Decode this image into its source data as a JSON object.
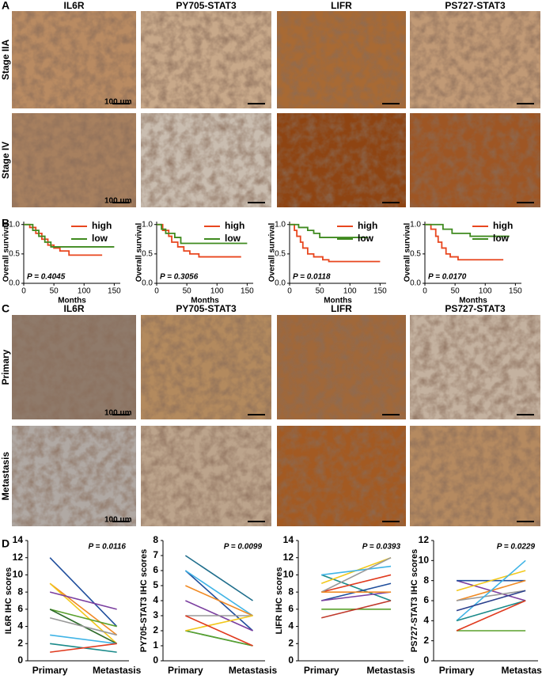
{
  "panel_labels": [
    "A",
    "B",
    "C",
    "D"
  ],
  "panel_a": {
    "columns": [
      "IL6R",
      "PY705-STAT3",
      "LIFR",
      "PS727-STAT3"
    ],
    "rows": [
      "Stage IIA",
      "Stage IV"
    ],
    "scale_labels": [
      "100 um",
      "100 um"
    ]
  },
  "panel_c": {
    "columns": [
      "IL6R",
      "PY705-STAT3",
      "LIFR",
      "PS727-STAT3"
    ],
    "rows": [
      "Primary",
      "Metastasis"
    ],
    "scale_labels": [
      "100 um",
      "100 um"
    ]
  },
  "chart_data": [
    {
      "type": "step",
      "ylabel": "Overall survival",
      "xlabel": "Months",
      "annotation": "P = 0.4045",
      "legend": "upper right",
      "xlim": [
        0,
        160
      ],
      "ylim": [
        0,
        1.05
      ],
      "xticks": [
        0,
        50,
        100,
        150
      ],
      "yticks": [
        {
          "value": 0,
          "label": "0.0"
        },
        {
          "value": 0.5,
          "label": "0.5"
        },
        {
          "value": 1,
          "label": "1.0"
        }
      ],
      "series": [
        {
          "name": "high",
          "color": "#e8461e",
          "x": [
            0,
            10,
            10,
            20,
            20,
            30,
            30,
            40,
            40,
            50,
            50,
            60,
            60,
            75,
            75,
            130
          ],
          "values": [
            1,
            1,
            0.95,
            0.95,
            0.85,
            0.85,
            0.75,
            0.75,
            0.65,
            0.65,
            0.6,
            0.6,
            0.55,
            0.55,
            0.48,
            0.48
          ]
        },
        {
          "name": "low",
          "color": "#3f8a1f",
          "x": [
            0,
            15,
            15,
            25,
            25,
            35,
            35,
            45,
            45,
            150
          ],
          "values": [
            1,
            1,
            0.9,
            0.9,
            0.8,
            0.8,
            0.7,
            0.7,
            0.62,
            0.62
          ]
        }
      ]
    },
    {
      "type": "step",
      "ylabel": "Overall survival",
      "xlabel": "Months",
      "annotation": "P = 0.3056",
      "legend": "upper right",
      "xlim": [
        0,
        160
      ],
      "ylim": [
        0,
        1.05
      ],
      "xticks": [
        0,
        50,
        100,
        150
      ],
      "yticks": [
        {
          "value": 0,
          "label": "0.0"
        },
        {
          "value": 0.5,
          "label": "0.5"
        },
        {
          "value": 1,
          "label": "1.0"
        }
      ],
      "series": [
        {
          "name": "high",
          "color": "#e8461e",
          "x": [
            0,
            10,
            10,
            20,
            20,
            25,
            25,
            35,
            35,
            45,
            45,
            55,
            55,
            70,
            70,
            140
          ],
          "values": [
            1,
            1,
            0.9,
            0.9,
            0.8,
            0.8,
            0.7,
            0.7,
            0.62,
            0.62,
            0.55,
            0.55,
            0.5,
            0.5,
            0.45,
            0.45
          ]
        },
        {
          "name": "low",
          "color": "#3f8a1f",
          "x": [
            0,
            8,
            8,
            15,
            15,
            30,
            30,
            40,
            40,
            150
          ],
          "values": [
            1,
            1,
            0.92,
            0.92,
            0.85,
            0.85,
            0.78,
            0.78,
            0.68,
            0.68
          ]
        }
      ]
    },
    {
      "type": "step",
      "ylabel": "Overall survival",
      "xlabel": "Months",
      "annotation": "P = 0.0118",
      "legend": "upper right",
      "xlim": [
        0,
        160
      ],
      "ylim": [
        0,
        1.05
      ],
      "xticks": [
        0,
        50,
        100,
        150
      ],
      "yticks": [
        {
          "value": 0,
          "label": "0.0"
        },
        {
          "value": 0.5,
          "label": "0.5"
        },
        {
          "value": 1,
          "label": "1.0"
        }
      ],
      "series": [
        {
          "name": "high",
          "color": "#e8461e",
          "x": [
            0,
            8,
            8,
            12,
            12,
            18,
            18,
            22,
            22,
            30,
            30,
            40,
            40,
            55,
            55,
            65,
            65,
            150
          ],
          "values": [
            1,
            1,
            0.9,
            0.9,
            0.8,
            0.8,
            0.7,
            0.7,
            0.6,
            0.6,
            0.5,
            0.5,
            0.45,
            0.45,
            0.4,
            0.4,
            0.37,
            0.37
          ]
        },
        {
          "name": "low",
          "color": "#3f8a1f",
          "x": [
            0,
            15,
            15,
            30,
            30,
            40,
            40,
            50,
            50,
            130
          ],
          "values": [
            1,
            1,
            0.95,
            0.95,
            0.9,
            0.9,
            0.85,
            0.85,
            0.78,
            0.78
          ]
        }
      ]
    },
    {
      "type": "step",
      "ylabel": "Overall survival",
      "xlabel": "Months",
      "annotation": "P = 0.0170",
      "legend": "upper right",
      "xlim": [
        0,
        160
      ],
      "ylim": [
        0,
        1.05
      ],
      "xticks": [
        0,
        50,
        100,
        150
      ],
      "yticks": [
        {
          "value": 0,
          "label": "0.0"
        },
        {
          "value": 0.5,
          "label": "0.5"
        },
        {
          "value": 1,
          "label": "1.0"
        }
      ],
      "series": [
        {
          "name": "high",
          "color": "#e8461e",
          "x": [
            0,
            10,
            10,
            18,
            18,
            22,
            22,
            28,
            28,
            35,
            35,
            42,
            42,
            55,
            55,
            130
          ],
          "values": [
            1,
            1,
            0.92,
            0.92,
            0.8,
            0.8,
            0.7,
            0.7,
            0.6,
            0.6,
            0.5,
            0.5,
            0.45,
            0.45,
            0.4,
            0.4
          ]
        },
        {
          "name": "low",
          "color": "#3f8a1f",
          "x": [
            0,
            30,
            30,
            45,
            45,
            75,
            75,
            140
          ],
          "values": [
            1,
            1,
            0.92,
            0.92,
            0.85,
            0.85,
            0.8,
            0.8
          ]
        }
      ]
    },
    {
      "type": "paired",
      "ylabel": "IL6R IHC scores",
      "annotation": "P = 0.0116",
      "categories": [
        "Primary",
        "Metastasis"
      ],
      "ylim": [
        0,
        14
      ],
      "yticks": [
        0,
        2,
        4,
        6,
        8,
        10,
        12,
        14
      ],
      "series": [
        {
          "color": "#1f4e9c",
          "values": [
            12,
            4
          ]
        },
        {
          "color": "#f08a24",
          "values": [
            9,
            3
          ]
        },
        {
          "color": "#f2c81c",
          "values": [
            9,
            2
          ]
        },
        {
          "color": "#7b3fa0",
          "values": [
            8,
            6
          ]
        },
        {
          "color": "#5aa02c",
          "values": [
            6,
            4
          ]
        },
        {
          "color": "#2e6b2a",
          "values": [
            6,
            2
          ]
        },
        {
          "color": "#999999",
          "values": [
            5,
            3
          ]
        },
        {
          "color": "#40b4e6",
          "values": [
            3,
            2
          ]
        },
        {
          "color": "#1a8a8a",
          "values": [
            2,
            1
          ]
        },
        {
          "color": "#e03a1e",
          "values": [
            1,
            2
          ]
        }
      ]
    },
    {
      "type": "paired",
      "ylabel": "PY705-STAT3 IHC scores",
      "annotation": "P = 0.0099",
      "categories": [
        "Primary",
        "Metastasis"
      ],
      "ylim": [
        0,
        8
      ],
      "yticks": [
        0,
        1,
        2,
        3,
        4,
        5,
        6,
        7,
        8
      ],
      "series": [
        {
          "color": "#1f6e8c",
          "values": [
            7,
            4
          ]
        },
        {
          "color": "#1f4e9c",
          "values": [
            6,
            2
          ]
        },
        {
          "color": "#40b4e6",
          "values": [
            6,
            3
          ]
        },
        {
          "color": "#f08a24",
          "values": [
            5,
            3
          ]
        },
        {
          "color": "#7b3fa0",
          "values": [
            4,
            2
          ]
        },
        {
          "color": "#999999",
          "values": [
            3,
            3
          ]
        },
        {
          "color": "#1a8a8a",
          "values": [
            2,
            1
          ]
        },
        {
          "color": "#5aa02c",
          "values": [
            2,
            1
          ]
        },
        {
          "color": "#f2c81c",
          "values": [
            2,
            3
          ]
        },
        {
          "color": "#e03a1e",
          "values": [
            3,
            1
          ]
        }
      ]
    },
    {
      "type": "paired",
      "ylabel": "LIFR IHC scores",
      "annotation": "P = 0.0393",
      "categories": [
        "Primary",
        "Metastasis"
      ],
      "ylim": [
        0,
        14
      ],
      "yticks": [
        0,
        2,
        4,
        6,
        8,
        10,
        12,
        14
      ],
      "series": [
        {
          "color": "#1a8a8a",
          "values": [
            10,
            7
          ]
        },
        {
          "color": "#f2c81c",
          "values": [
            9,
            12
          ]
        },
        {
          "color": "#40b4e6",
          "values": [
            10,
            11
          ]
        },
        {
          "color": "#e03a1e",
          "values": [
            8,
            10
          ]
        },
        {
          "color": "#1f4e9c",
          "values": [
            7,
            9
          ]
        },
        {
          "color": "#7b3fa0",
          "values": [
            7,
            8
          ]
        },
        {
          "color": "#5aa02c",
          "values": [
            6,
            6
          ]
        },
        {
          "color": "#c0392b",
          "values": [
            5,
            7
          ]
        },
        {
          "color": "#999999",
          "values": [
            8,
            12
          ]
        },
        {
          "color": "#f08a24",
          "values": [
            8,
            8
          ]
        }
      ]
    },
    {
      "type": "paired",
      "ylabel": "PS727-STAT3 IHC scores",
      "annotation": "P = 0.0229",
      "categories": [
        "Primary",
        "Metastasis"
      ],
      "ylim": [
        0,
        12
      ],
      "yticks": [
        0,
        2,
        4,
        6,
        8,
        10,
        12
      ],
      "series": [
        {
          "color": "#7b3fa0",
          "values": [
            8,
            6
          ]
        },
        {
          "color": "#1f4e9c",
          "values": [
            8,
            8
          ]
        },
        {
          "color": "#f2c81c",
          "values": [
            7,
            9
          ]
        },
        {
          "color": "#f08a24",
          "values": [
            6,
            8
          ]
        },
        {
          "color": "#999999",
          "values": [
            6,
            7
          ]
        },
        {
          "color": "#40b4e6",
          "values": [
            4,
            10
          ]
        },
        {
          "color": "#1a8a8a",
          "values": [
            4,
            6
          ]
        },
        {
          "color": "#5aa02c",
          "values": [
            3,
            3
          ]
        },
        {
          "color": "#e03a1e",
          "values": [
            3,
            6
          ]
        },
        {
          "color": "#2a3f8c",
          "values": [
            5,
            7
          ]
        }
      ]
    }
  ]
}
